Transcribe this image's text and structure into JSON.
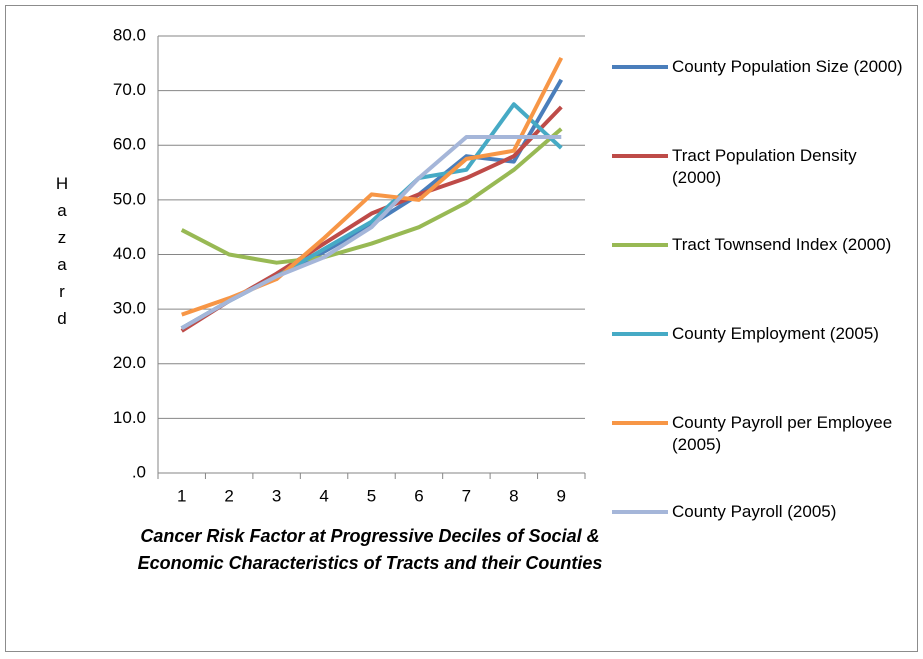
{
  "chart_data": {
    "type": "line",
    "ylabel": "Hazard",
    "xlabel": [
      "Cancer Risk Factor at Progressive Deciles of Social &",
      "Economic Characteristics of Tracts and their Counties"
    ],
    "categories": [
      "1",
      "2",
      "3",
      "4",
      "5",
      "6",
      "7",
      "8",
      "9"
    ],
    "ylim": [
      0,
      80
    ],
    "yticks": [
      {
        "value": 0,
        "label": ".0"
      },
      {
        "value": 10,
        "label": "10.0"
      },
      {
        "value": 20,
        "label": "20.0"
      },
      {
        "value": 30,
        "label": "30.0"
      },
      {
        "value": 40,
        "label": "40.0"
      },
      {
        "value": 50,
        "label": "50.0"
      },
      {
        "value": 60,
        "label": "60.0"
      },
      {
        "value": 70,
        "label": "70.0"
      },
      {
        "value": 80,
        "label": "80.0"
      }
    ],
    "grid": true,
    "legend": "right",
    "series": [
      {
        "name": "County Population Size (2000)",
        "color": "#4a7ebb",
        "values": [
          26.5,
          31.5,
          36,
          40.5,
          45.5,
          51,
          58,
          57,
          72
        ]
      },
      {
        "name": "Tract Population Density (2000)",
        "color": "#be4b48",
        "values": [
          26,
          31.5,
          36.5,
          42,
          47.5,
          51,
          54,
          58,
          67
        ]
      },
      {
        "name": "Tract Townsend Index (2000)",
        "color": "#98b954",
        "values": [
          44.5,
          40,
          38.5,
          39.5,
          42,
          45,
          49.5,
          55.5,
          63
        ]
      },
      {
        "name": "County Employment (2005)",
        "color": "#46aac5",
        "values": [
          26.5,
          31.5,
          36,
          41,
          46,
          54,
          55.5,
          67.5,
          59.5
        ]
      },
      {
        "name": "County Payroll per Employee (2005)",
        "color": "#f79646",
        "values": [
          29,
          32,
          35.5,
          43,
          51,
          50,
          57.5,
          59,
          76
        ]
      },
      {
        "name": "County Payroll (2005)",
        "color": "#a5b6d9",
        "values": [
          26.5,
          31.5,
          36,
          39.5,
          45,
          54,
          61.5,
          61.5,
          61.5
        ]
      }
    ]
  }
}
